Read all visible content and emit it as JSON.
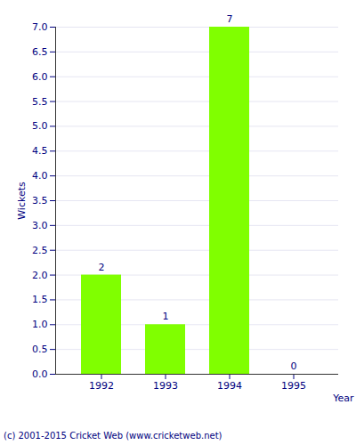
{
  "chart_data": {
    "type": "bar",
    "categories": [
      "1992",
      "1993",
      "1994",
      "1995"
    ],
    "values": [
      2,
      1,
      7,
      0
    ],
    "color": "#80ff00",
    "x_label": "Year",
    "y_label": "Wickets",
    "caption": "(c) 2001-2015 Cricket Web (www.cricketweb.net)",
    "ylim": [
      0,
      7
    ],
    "yticks": [
      {
        "value": 0,
        "label": "0.0"
      },
      {
        "value": 0.5,
        "label": "0.5"
      },
      {
        "value": 1,
        "label": "1.0"
      },
      {
        "value": 1.5,
        "label": "1.5"
      },
      {
        "value": 2,
        "label": "2.0"
      },
      {
        "value": 2.5,
        "label": "2.5"
      },
      {
        "value": 3,
        "label": "3.0"
      },
      {
        "value": 3.5,
        "label": "3.5"
      },
      {
        "value": 4,
        "label": "4.0"
      },
      {
        "value": 4.5,
        "label": "4.5"
      },
      {
        "value": 5,
        "label": "5.0"
      },
      {
        "value": 5.5,
        "label": "5.5"
      },
      {
        "value": 6,
        "label": "6.0"
      },
      {
        "value": 6.5,
        "label": "6.5"
      },
      {
        "value": 7,
        "label": "7.0"
      }
    ],
    "grid": true,
    "data_labels": true
  }
}
